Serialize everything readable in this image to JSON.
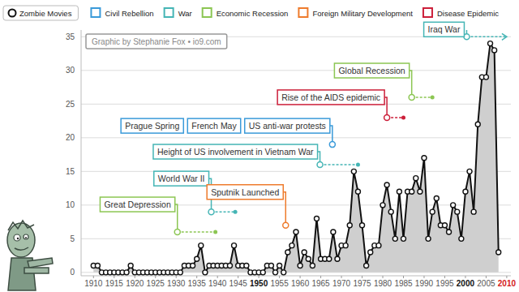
{
  "chart_data": {
    "type": "line",
    "credit": "Graphic by Stephanie Fox • io9.com",
    "x": [
      1910,
      1911,
      1912,
      1913,
      1914,
      1915,
      1916,
      1917,
      1918,
      1919,
      1920,
      1921,
      1922,
      1923,
      1924,
      1925,
      1926,
      1927,
      1928,
      1929,
      1930,
      1931,
      1932,
      1933,
      1934,
      1935,
      1936,
      1937,
      1938,
      1939,
      1940,
      1941,
      1942,
      1943,
      1944,
      1945,
      1946,
      1947,
      1948,
      1949,
      1950,
      1951,
      1952,
      1953,
      1954,
      1955,
      1956,
      1957,
      1958,
      1959,
      1960,
      1961,
      1962,
      1963,
      1964,
      1965,
      1966,
      1967,
      1968,
      1969,
      1970,
      1971,
      1972,
      1973,
      1974,
      1975,
      1976,
      1977,
      1978,
      1979,
      1980,
      1981,
      1982,
      1983,
      1984,
      1985,
      1986,
      1987,
      1988,
      1989,
      1990,
      1991,
      1992,
      1993,
      1994,
      1995,
      1996,
      1997,
      1998,
      1999,
      2000,
      2001,
      2002,
      2003,
      2004,
      2005,
      2006,
      2007,
      2008
    ],
    "series": [
      {
        "name": "Zombie Movies",
        "color": "#111111",
        "marker": "circle",
        "values": [
          1,
          1,
          0,
          0,
          0,
          0,
          0,
          0,
          0,
          1,
          0,
          0,
          0,
          0,
          0,
          0,
          0,
          0,
          0,
          0,
          0,
          0,
          1,
          1,
          1,
          2,
          4,
          0,
          1,
          1,
          1,
          1,
          1,
          1,
          4,
          1,
          1,
          1,
          0,
          0,
          0,
          0,
          1,
          1,
          0,
          1,
          0,
          3,
          4,
          6,
          1,
          3,
          2,
          1,
          8,
          2,
          2,
          2,
          6,
          2,
          4,
          4,
          7,
          15,
          12,
          7,
          1,
          3,
          4,
          4,
          10,
          13,
          9,
          5,
          12,
          5,
          12,
          12,
          14,
          12,
          17,
          5,
          9,
          11,
          7,
          7,
          6,
          10,
          9,
          5,
          12,
          15,
          9,
          22,
          29,
          29,
          34,
          33,
          3
        ]
      }
    ],
    "xlim": [
      1907,
      2011
    ],
    "xticks": [
      1910,
      1915,
      1920,
      1925,
      1930,
      1935,
      1940,
      1945,
      1950,
      1955,
      1960,
      1965,
      1970,
      1975,
      1980,
      1985,
      1990,
      1995,
      2000,
      2005,
      2010
    ],
    "ylim": [
      -0.5,
      36
    ],
    "yticks": [
      0,
      5,
      10,
      15,
      20,
      25,
      30,
      35
    ],
    "grid": true,
    "legend": "top-left",
    "annotation_categories": [
      {
        "name": "Civil Rebellion",
        "color": "#3a9ad9"
      },
      {
        "name": "War",
        "color": "#45b5b5"
      },
      {
        "name": "Economic Recession",
        "color": "#8cc653"
      },
      {
        "name": "Foreign Military Development",
        "color": "#ee7b2c"
      },
      {
        "name": "Disease Epidemic",
        "color": "#cc1f3a"
      }
    ],
    "annotations": [
      {
        "labels": [
          "Great Depression"
        ],
        "category": "Economic Recession",
        "start": 1930.3,
        "end": 1939.5,
        "level": 6
      },
      {
        "labels": [
          "World War II"
        ],
        "category": "War",
        "start": 1938.5,
        "end": 1944.3,
        "level": 9
      },
      {
        "labels": [
          "Sputnik Launched"
        ],
        "category": "Foreign Military Development",
        "start": 1956.5,
        "level": 7
      },
      {
        "labels": [
          "Prague Spring",
          "French May",
          "US anti-war protests"
        ],
        "category": "Civil Rebellion",
        "start": 1967.8,
        "level": 19
      },
      {
        "labels": [
          "Height of US involvement in Vietnam War"
        ],
        "category": "War",
        "start": 1964.8,
        "end": 1974,
        "level": 16
      },
      {
        "labels": [
          "Rise of the AIDS epidemic"
        ],
        "category": "Disease Epidemic",
        "start": 1981,
        "end": 1985,
        "level": 23
      },
      {
        "labels": [
          "Global Recession"
        ],
        "category": "Economic Recession",
        "start": 1987,
        "end": 1992,
        "level": 26
      },
      {
        "labels": [
          "Iraq War"
        ],
        "category": "War",
        "start": 2000.3,
        "end": 2010,
        "level": 35
      }
    ]
  }
}
